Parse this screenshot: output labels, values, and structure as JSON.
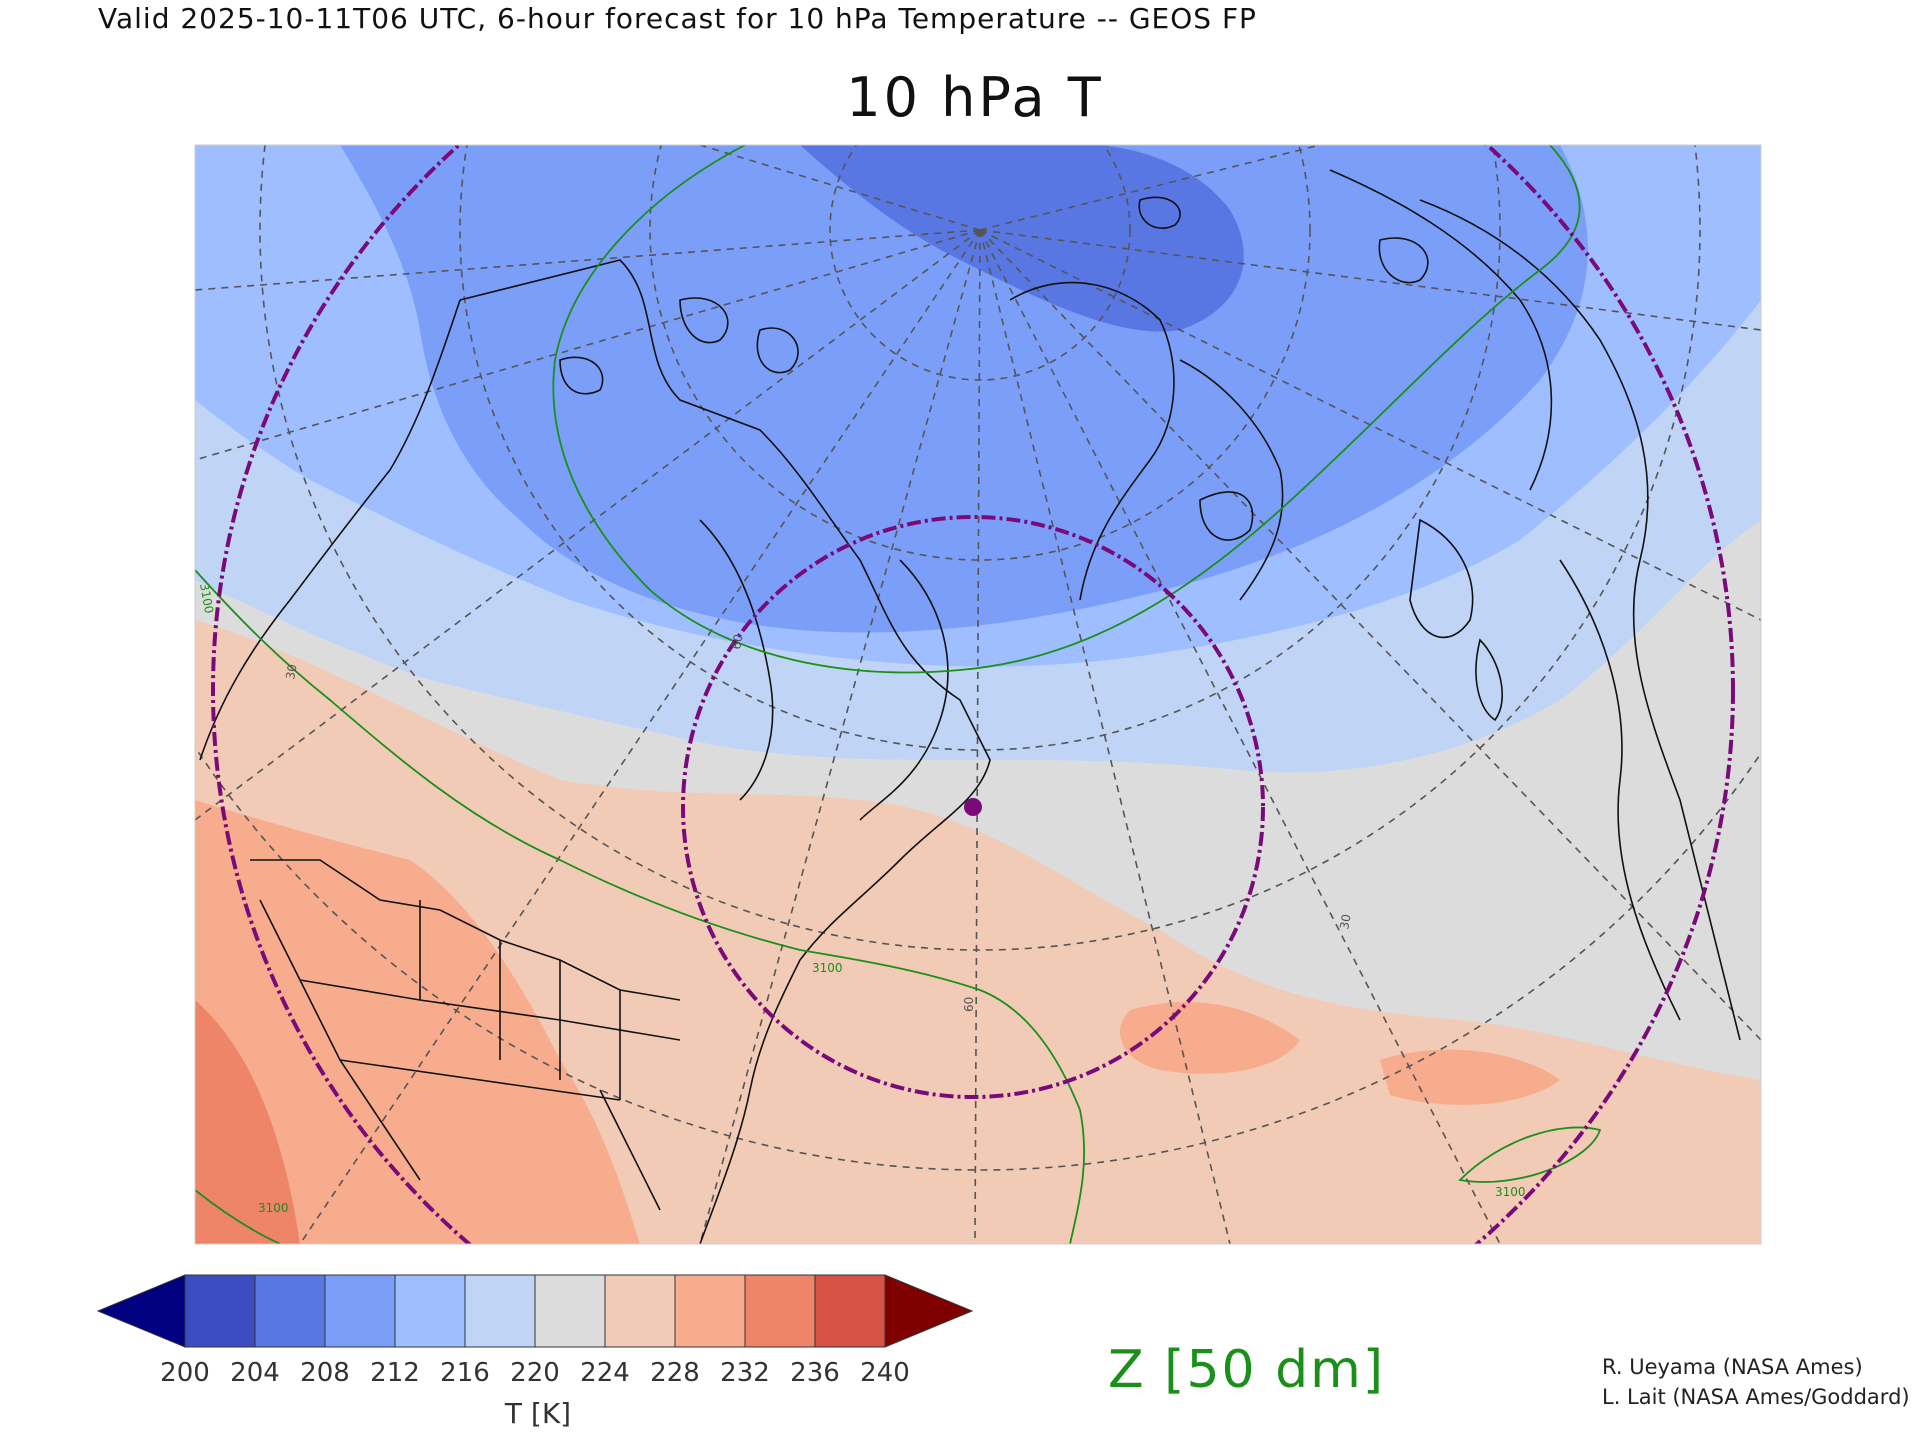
{
  "header": {
    "line": "Valid 2025-10-11T06 UTC, 6-hour forecast for 10 hPa Temperature -- GEOS FP"
  },
  "map": {
    "title": "10 hPa T",
    "projection": "polar-stereographic",
    "land_outline_color": "#111111",
    "graticule_color": "#555555",
    "range_ring_color": "#7a0a7a",
    "marker_color": "#7a0a7a",
    "contour_color": "#1a8f1a",
    "contour_labels": [
      "3100",
      "3100",
      "3100",
      "3100"
    ],
    "graticule_labels": [
      "30",
      "60",
      "60",
      "30"
    ]
  },
  "colorbar": {
    "ticks": [
      "200",
      "204",
      "208",
      "212",
      "216",
      "220",
      "224",
      "228",
      "232",
      "236",
      "240"
    ],
    "unit_label": "T [K]",
    "colors": [
      "#000080",
      "#3b4cc0",
      "#5977e3",
      "#7b9ff9",
      "#9ebeff",
      "#c0d4f5",
      "#dddcdc",
      "#f2cbb7",
      "#f7ac8e",
      "#ee8468",
      "#d65244",
      "#800000"
    ]
  },
  "contour_legend": {
    "label": "Z [50 dm]"
  },
  "credits": {
    "line1": "R. Ueyama (NASA Ames)",
    "line2": "L. Lait (NASA Ames/Goddard)"
  }
}
